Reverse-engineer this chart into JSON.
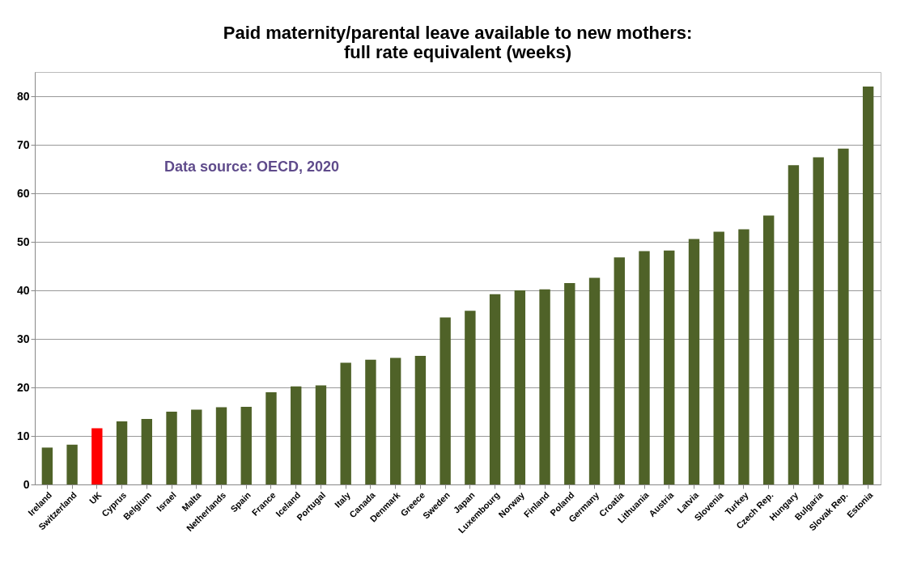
{
  "chart_data": {
    "type": "bar",
    "title": [
      "Paid maternity/parental leave available to new mothers:",
      "full rate equivalent (weeks)"
    ],
    "categories": [
      "Ireland",
      "Switzerland",
      "UK",
      "Cyprus",
      "Belgium",
      "Israel",
      "Malta",
      "Netherlands",
      "Spain",
      "France",
      "Iceland",
      "Portugal",
      "Italy",
      "Canada",
      "Denmark",
      "Greece",
      "Sweden",
      "Japan",
      "Luxembourg",
      "Norway",
      "Finland",
      "Poland",
      "Germany",
      "Croatia",
      "Lithuania",
      "Austria",
      "Latvia",
      "Slovenia",
      "Turkey",
      "Czech Rep.",
      "Hungary",
      "Bulgaria",
      "Slovak Rep.",
      "Estonia"
    ],
    "values": [
      7.6,
      8.2,
      11.6,
      13.0,
      13.5,
      15.0,
      15.4,
      15.9,
      16.0,
      19.0,
      20.2,
      20.4,
      25.1,
      25.7,
      26.1,
      26.5,
      34.4,
      35.8,
      39.2,
      40.0,
      40.2,
      41.5,
      42.6,
      46.8,
      48.1,
      48.2,
      50.6,
      52.1,
      52.6,
      55.4,
      65.8,
      67.4,
      69.2,
      82.0
    ],
    "colors": [
      "#4f6228",
      "#4f6228",
      "#ff0000",
      "#4f6228",
      "#4f6228",
      "#4f6228",
      "#4f6228",
      "#4f6228",
      "#4f6228",
      "#4f6228",
      "#4f6228",
      "#4f6228",
      "#4f6228",
      "#4f6228",
      "#4f6228",
      "#4f6228",
      "#4f6228",
      "#4f6228",
      "#4f6228",
      "#4f6228",
      "#4f6228",
      "#4f6228",
      "#4f6228",
      "#4f6228",
      "#4f6228",
      "#4f6228",
      "#4f6228",
      "#4f6228",
      "#4f6228",
      "#4f6228",
      "#4f6228",
      "#4f6228",
      "#4f6228",
      "#4f6228"
    ],
    "ylim": [
      0,
      85
    ],
    "yticks": [
      0,
      10,
      20,
      30,
      40,
      50,
      60,
      70,
      80
    ],
    "grid": "y",
    "annotations": [
      "Data source: OECD, 2020"
    ]
  }
}
